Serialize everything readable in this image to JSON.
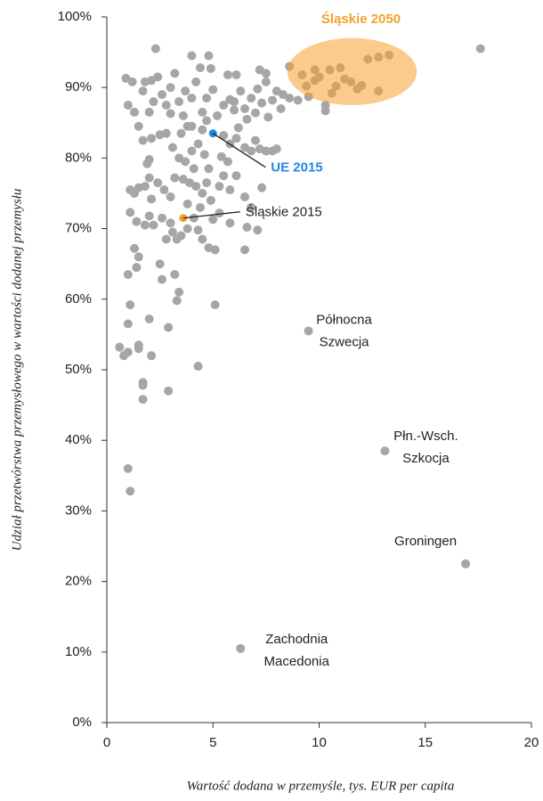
{
  "chart_data": {
    "type": "scatter",
    "x_label": "Wartość dodana w przemyśle, tys. EUR per capita",
    "y_label": "Udział przetwórstwa przemysłowego w wartości dodanej przemysłu",
    "xlim": [
      0,
      20
    ],
    "xticks": [
      0,
      5,
      10,
      15,
      20
    ],
    "ylim": [
      0,
      100
    ],
    "yticks": [
      {
        "value": 0,
        "label": "0%"
      },
      {
        "value": 10,
        "label": "10%"
      },
      {
        "value": 20,
        "label": "20%"
      },
      {
        "value": 30,
        "label": "30%"
      },
      {
        "value": 40,
        "label": "40%"
      },
      {
        "value": 50,
        "label": "50%"
      },
      {
        "value": 60,
        "label": "60%"
      },
      {
        "value": 70,
        "label": "70%"
      },
      {
        "value": 80,
        "label": "80%"
      },
      {
        "value": 90,
        "label": "90%"
      },
      {
        "value": 100,
        "label": "100%"
      }
    ],
    "series": [
      {
        "color": "#a6a6a6",
        "x": [
          0.6,
          0.8,
          1.0,
          1.0,
          1.1,
          1.5,
          1.5,
          1.7,
          1.7,
          1.7,
          2.1,
          2.0,
          1.0,
          1.1,
          1.0,
          1.4,
          1.3,
          1.5,
          2.5,
          2.6,
          3.2,
          3.4,
          3.3,
          2.9,
          2.9,
          4.3,
          5.1,
          0.9,
          1.2,
          1.0,
          1.3,
          1.5,
          1.7,
          1.8,
          2.3,
          2.1,
          2.4,
          2.2,
          2.0,
          2.6,
          2.8,
          3.0,
          3.2,
          3.4,
          3.6,
          3.8,
          4.0,
          4.2,
          4.4,
          4.0,
          4.8,
          4.9,
          5.0,
          4.5,
          4.7,
          5.2,
          5.5,
          5.8,
          5.7,
          6.1,
          6.3,
          6.0,
          6.5,
          6.8,
          7.1,
          7.2,
          7.5,
          7.3,
          7.0,
          7.6,
          7.8,
          8.0,
          8.3,
          8.6,
          8.2,
          8.6,
          9.0,
          9.5,
          10.3,
          10.3,
          7.5,
          6.6,
          6.2,
          5.5,
          5.8,
          6.1,
          6.5,
          6.8,
          7.2,
          7.5,
          7.8,
          8.0,
          7.0,
          5.4,
          5.7,
          5.5,
          5.3,
          5.8,
          6.1,
          6.5,
          6.8,
          7.3,
          7.1,
          6.6,
          6.5,
          5.8,
          5.3,
          5.0,
          5.1,
          4.8,
          4.5,
          4.3,
          4.1,
          3.8,
          3.5,
          3.3,
          3.1,
          3.0,
          2.8,
          2.6,
          2.2,
          2.0,
          1.8,
          1.4,
          1.1,
          1.3,
          1.1,
          1.5,
          1.8,
          2.0,
          1.9,
          2.0,
          1.7,
          2.1,
          2.5,
          2.8,
          3.1,
          3.4,
          3.7,
          3.2,
          3.6,
          3.9,
          4.2,
          4.5,
          4.7,
          4.9,
          3.0,
          2.7,
          2.4,
          2.1,
          4.0,
          4.3,
          4.6,
          4.8,
          4.1,
          3.8,
          4.4,
          4.0,
          4.5,
          3.5,
          3.0,
          3.7,
          4.7,
          6.0,
          10.0,
          10.5,
          11.0,
          11.2,
          10.8,
          11.5,
          12.0,
          12.3,
          12.8,
          13.3,
          12.8,
          11.8,
          10.6,
          9.8,
          9.4,
          9.2,
          9.8,
          17.6
        ],
        "values": [
          53.2,
          52,
          52.5,
          36,
          32.8,
          53.5,
          53,
          47.8,
          48.2,
          45.8,
          52,
          57.2,
          56.5,
          59.2,
          63.5,
          64.5,
          67.2,
          66,
          65,
          62.8,
          63.5,
          61,
          59.8,
          56,
          47,
          50.5,
          59.2,
          91.3,
          90.8,
          87.5,
          86.5,
          84.5,
          89.5,
          90.8,
          95.5,
          91,
          91.5,
          88,
          86.5,
          89,
          87.5,
          90,
          92,
          88,
          86,
          84.5,
          88.5,
          90.8,
          92.8,
          94.5,
          94.5,
          92.7,
          89.7,
          86.5,
          85.3,
          86,
          87.5,
          88.3,
          91.8,
          91.8,
          89.5,
          86.8,
          87,
          88.5,
          89.8,
          92.5,
          92,
          87.8,
          86.4,
          85.8,
          88.2,
          89.5,
          89,
          93,
          87,
          88.5,
          88.2,
          88.7,
          87.5,
          86.7,
          90.8,
          85.5,
          84.3,
          83.2,
          82,
          82.8,
          81.5,
          81,
          81.3,
          81,
          81,
          81.3,
          82.5,
          80.2,
          79.5,
          77.5,
          76,
          75.5,
          77.5,
          74.5,
          73,
          75.8,
          69.8,
          70.2,
          67,
          70.8,
          72.2,
          71.3,
          67,
          67.3,
          68.5,
          69.8,
          71.5,
          70,
          69,
          68.5,
          69.5,
          70.8,
          68.5,
          71.5,
          70.5,
          71.8,
          70.5,
          71,
          72.3,
          75,
          75.5,
          75.8,
          76,
          77.2,
          79.2,
          79.8,
          82.5,
          82.8,
          83.3,
          83.5,
          81.5,
          80,
          79.5,
          77.2,
          77,
          76.5,
          76,
          75,
          76.5,
          74,
          74.5,
          75.5,
          76.5,
          74.2,
          81,
          82,
          80.5,
          78.5,
          78.5,
          73.5,
          73,
          84.5,
          84,
          83.5,
          86.3,
          89.5,
          88.5,
          88,
          91.5,
          92.5,
          92.8,
          91.2,
          90.2,
          90.8,
          90.3,
          94,
          94.3,
          94.6,
          89.5,
          89.8,
          89.2,
          91,
          90.2,
          91.8,
          92.5,
          95.5
        ]
      },
      {
        "name": "UE 2015",
        "color": "#1e88e5",
        "x": [
          5.0
        ],
        "values": [
          83.5
        ]
      },
      {
        "name": "Śląskie 2015",
        "color": "#f5a02a",
        "x": [
          3.6
        ],
        "values": [
          71.5
        ]
      }
    ],
    "region": {
      "name": "Śląskie 2050",
      "color": "#f5a02a",
      "xrange": [
        8.5,
        14.6
      ],
      "yrange": [
        87.5,
        97
      ]
    },
    "annotations": [
      {
        "lines": [
          "Północna",
          "Szwecja"
        ],
        "x": 9.5,
        "y": 55.5
      },
      {
        "lines": [
          "Płn.-Wsch.",
          "Szkocja"
        ],
        "x": 13.1,
        "y": 38.5
      },
      {
        "lines": [
          "Groningen"
        ],
        "x": 16.9,
        "y": 22.5
      },
      {
        "lines": [
          "Zachodnia",
          "Macedonia"
        ],
        "x": 6.3,
        "y": 10.5
      }
    ]
  }
}
